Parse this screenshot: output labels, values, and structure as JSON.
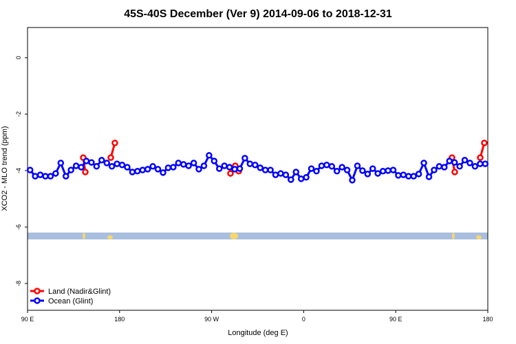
{
  "chart_data": {
    "type": "line",
    "title": "45S-40S December (Ver 9)   2014-09-06 to 2018-12-31",
    "xlabel": "Longitude (deg E)",
    "ylabel": "XCO2 - MLO trend (ppm)",
    "xlim": [
      90,
      540
    ],
    "ylim": [
      -8.95,
      1.07
    ],
    "xticks": [
      {
        "value": 90,
        "label": "90 E"
      },
      {
        "value": 180,
        "label": "180"
      },
      {
        "value": 270,
        "label": "90 W"
      },
      {
        "value": 360,
        "label": "0"
      },
      {
        "value": 450,
        "label": "90 E"
      },
      {
        "value": 540,
        "label": "180"
      }
    ],
    "yticks": [
      0,
      -2,
      -4,
      -6,
      -8
    ],
    "legend": "bottom-left",
    "series": [
      {
        "name": "Land (Nadir&Glint)",
        "color": "#ff0000",
        "x": [
          144.5,
          146.5,
          null,
          171.4,
          175.4,
          null,
          288.4,
          293.1,
          296.5,
          null,
          505.0,
          507.7,
          null,
          532.6,
          536.6
        ],
        "values": [
          -3.54,
          -4.05,
          null,
          -3.54,
          -3.02,
          null,
          -4.1,
          -3.83,
          -4.02,
          null,
          -3.54,
          -4.05,
          null,
          -3.54,
          -3.02
        ]
      },
      {
        "name": "Ocean (Glint)",
        "color": "#0000ff",
        "x": [
          92.5,
          97.5,
          102.5,
          107.5,
          112.5,
          117.5,
          122.5,
          127.5,
          132.5,
          137.5,
          142.5,
          147.5,
          152.5,
          157.5,
          162.5,
          167.5,
          172.5,
          177.5,
          182.5,
          187.5,
          192.5,
          197.5,
          202.5,
          207.5,
          212.5,
          217.5,
          222.5,
          227.5,
          232.5,
          237.5,
          242.5,
          247.5,
          252.5,
          257.5,
          262.5,
          267.5,
          272.5,
          277.5,
          282.5,
          287.5,
          292.5,
          297.5,
          302.5,
          307.5,
          312.5,
          317.5,
          322.5,
          327.5,
          332.5,
          337.5,
          342.5,
          347.5,
          352.5,
          357.5,
          362.5,
          367.5,
          372.5,
          377.5,
          382.5,
          387.5,
          392.5,
          397.5,
          402.5,
          407.5,
          412.5,
          417.5,
          422.5,
          427.5,
          432.5,
          437.5,
          442.5,
          447.5,
          452.5,
          457.5,
          462.5,
          467.5,
          472.5,
          477.5,
          482.5,
          487.5,
          492.5,
          497.5,
          502.5,
          507.5,
          512.5,
          517.5,
          522.5,
          527.5,
          532.5,
          537.5
        ],
        "values": [
          -3.98,
          -4.2,
          -4.15,
          -4.2,
          -4.2,
          -4.1,
          -3.73,
          -4.2,
          -3.98,
          -3.83,
          -3.88,
          -3.66,
          -3.71,
          -3.85,
          -3.63,
          -3.73,
          -3.85,
          -3.76,
          -3.8,
          -3.88,
          -4.05,
          -4.02,
          -3.98,
          -3.95,
          -3.85,
          -3.95,
          -4.07,
          -3.9,
          -3.88,
          -3.73,
          -3.78,
          -3.83,
          -3.73,
          -3.95,
          -3.83,
          -3.46,
          -3.66,
          -3.93,
          -3.83,
          -3.88,
          -3.95,
          -3.93,
          -3.56,
          -3.76,
          -3.8,
          -3.9,
          -3.98,
          -3.98,
          -4.15,
          -4.1,
          -4.15,
          -4.32,
          -4.05,
          -4.29,
          -4.24,
          -3.93,
          -4.02,
          -3.83,
          -3.8,
          -3.85,
          -4.02,
          -3.88,
          -3.98,
          -4.34,
          -3.83,
          -4.0,
          -4.12,
          -3.93,
          -4.1,
          -4.02,
          -4.0,
          -3.98,
          -4.17,
          -4.15,
          -4.2,
          -4.2,
          -4.12,
          -3.73,
          -4.22,
          -3.98,
          -3.85,
          -3.88,
          -3.66,
          -3.71,
          -3.85,
          -3.63,
          -3.73,
          -3.85,
          -3.76,
          -3.76
        ]
      }
    ]
  }
}
